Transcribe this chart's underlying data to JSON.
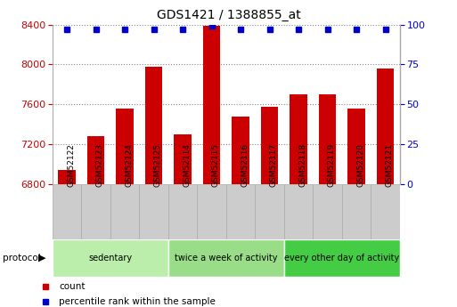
{
  "title": "GDS1421 / 1388855_at",
  "samples": [
    "GSM52122",
    "GSM52123",
    "GSM52124",
    "GSM52125",
    "GSM52114",
    "GSM52115",
    "GSM52116",
    "GSM52117",
    "GSM52118",
    "GSM52119",
    "GSM52120",
    "GSM52121"
  ],
  "counts": [
    6940,
    7280,
    7560,
    7980,
    7300,
    8390,
    7480,
    7580,
    7700,
    7700,
    7560,
    7960
  ],
  "percentile": [
    97,
    97,
    97,
    97,
    97,
    99,
    97,
    97,
    97,
    97,
    97,
    97
  ],
  "ylim_left": [
    6800,
    8400
  ],
  "ylim_right": [
    0,
    100
  ],
  "yticks_left": [
    6800,
    7200,
    7600,
    8000,
    8400
  ],
  "yticks_right": [
    0,
    25,
    50,
    75,
    100
  ],
  "bar_color": "#cc0000",
  "dot_color": "#0000cc",
  "groups": [
    {
      "label": "sedentary",
      "start": 0,
      "end": 4,
      "color": "#bbeeaa"
    },
    {
      "label": "twice a week of activity",
      "start": 4,
      "end": 8,
      "color": "#99dd88"
    },
    {
      "label": "every other day of activity",
      "start": 8,
      "end": 12,
      "color": "#44cc44"
    }
  ],
  "protocol_label": "protocol",
  "legend_count_label": "count",
  "legend_percentile_label": "percentile rank within the sample",
  "grid_color": "#888888",
  "tick_label_color_left": "#cc0000",
  "tick_label_color_right": "#0000cc",
  "sample_box_color": "#cccccc",
  "sample_box_edge": "#aaaaaa"
}
